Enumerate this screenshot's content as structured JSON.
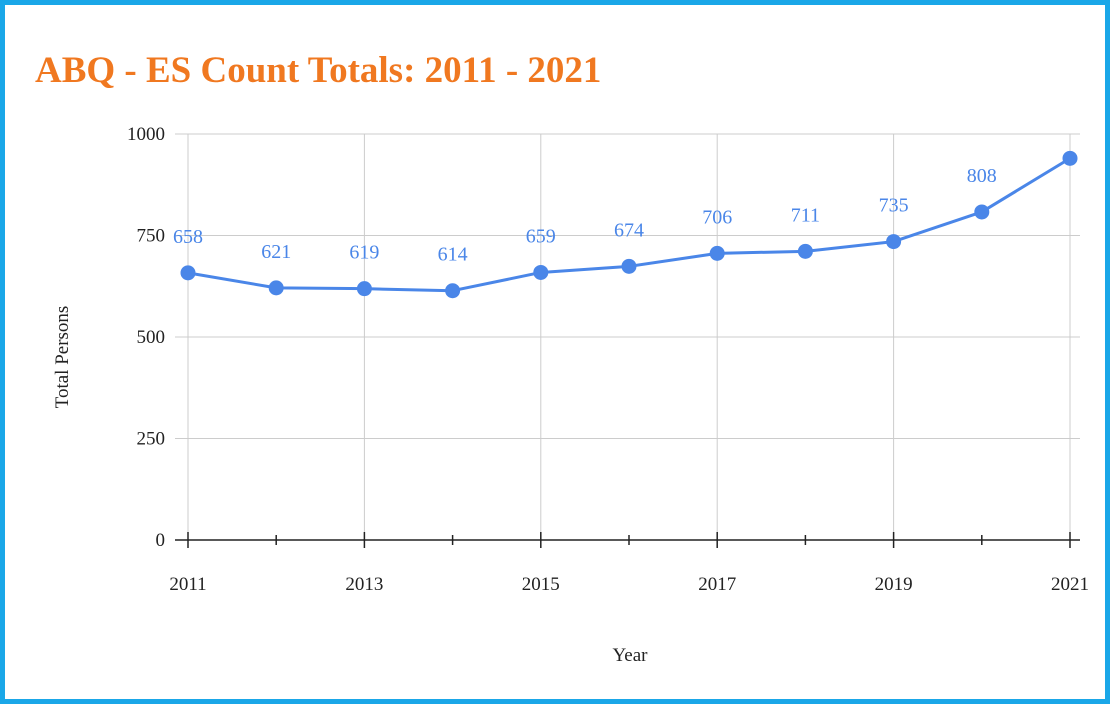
{
  "chart_data": {
    "type": "line",
    "title": "ABQ - ES Count Totals: 2011 - 2021",
    "x_label": "Year",
    "y_label": "Total Persons",
    "x": [
      2011,
      2012,
      2013,
      2014,
      2015,
      2016,
      2017,
      2018,
      2019,
      2020,
      2021
    ],
    "series": [
      {
        "name": "Total Persons",
        "color": "#4a86e8",
        "values": [
          658,
          621,
          619,
          614,
          659,
          674,
          706,
          711,
          735,
          808,
          940
        ],
        "value_labels": [
          "658",
          "621",
          "619",
          "614",
          "659",
          "674",
          "706",
          "711",
          "735",
          "808",
          null
        ]
      }
    ],
    "xlim": [
      2011,
      2021
    ],
    "xticks": [
      2011,
      2013,
      2015,
      2017,
      2019,
      2021
    ],
    "xminorticks": [
      2012,
      2014,
      2016,
      2018,
      2020
    ],
    "ylim": [
      0,
      1000
    ],
    "yticks": [
      0,
      250,
      500,
      750,
      1000
    ],
    "grid": true
  }
}
